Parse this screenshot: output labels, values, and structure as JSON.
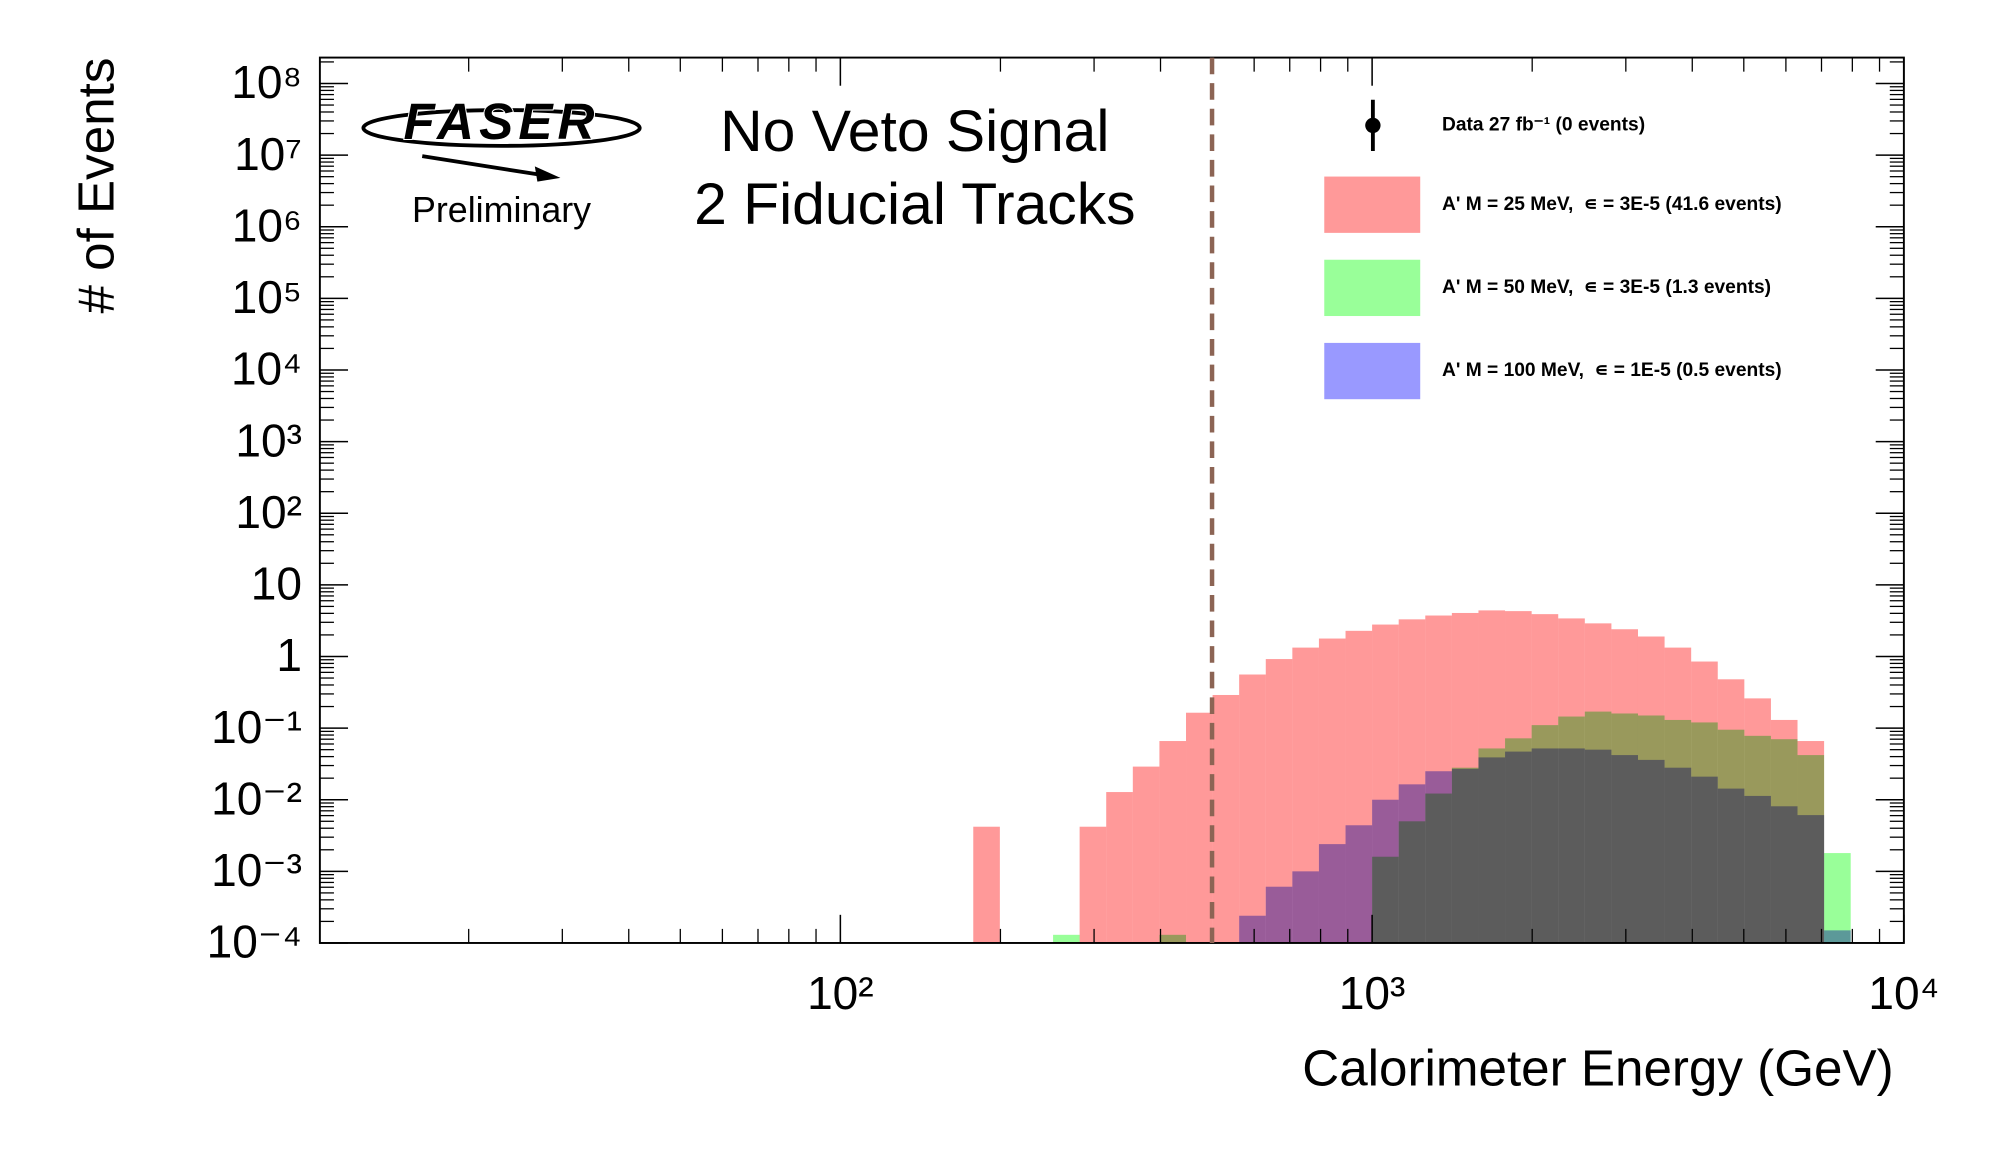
{
  "chart_data": {
    "type": "histogram",
    "annotations": [
      "No Veto Signal",
      "2 Fiducial Tracks"
    ],
    "logo": {
      "text": "FASER",
      "subtitle": "Preliminary"
    },
    "xlabel": "Calorimeter Energy (GeV)",
    "ylabel": "# of Events",
    "log_x": true,
    "log_y": true,
    "xlim": [
      10.5,
      10000
    ],
    "ylim": [
      0.0001,
      230000000
    ],
    "xticks": [
      {
        "value": 100,
        "label": "10²"
      },
      {
        "value": 1000,
        "label": "10³"
      },
      {
        "value": 10000,
        "label": "10⁴"
      }
    ],
    "yticks": [
      {
        "value": 0.0001,
        "label": "10⁻⁴"
      },
      {
        "value": 0.001,
        "label": "10⁻³"
      },
      {
        "value": 0.01,
        "label": "10⁻²"
      },
      {
        "value": 0.1,
        "label": "10⁻¹"
      },
      1,
      10,
      {
        "value": 100,
        "label": "10²"
      },
      {
        "value": 1000,
        "label": "10³"
      },
      {
        "value": 10000,
        "label": "10⁴"
      },
      {
        "value": 100000,
        "label": "10⁵"
      },
      {
        "value": 1000000,
        "label": "10⁶"
      },
      {
        "value": 10000000,
        "label": "10⁷"
      },
      {
        "value": 100000000,
        "label": "10⁸"
      }
    ],
    "bins": [
      177.8,
      199.5,
      223.9,
      251.2,
      281.8,
      316.2,
      354.8,
      398.1,
      446.7,
      501.2,
      562.3,
      631.0,
      707.9,
      794.3,
      891.3,
      1000,
      1122,
      1258.9,
      1412.5,
      1584.9,
      1778.3,
      1995.3,
      2238.7,
      2511.9,
      2818.4,
      3162.3,
      3548.1,
      3981.1,
      4466.8,
      5011.9,
      5623.4,
      6309.6,
      7079.5,
      7943.3
    ],
    "series": [
      {
        "name": "A' M = 25 MeV,  ∊ = 3E-5 (41.6 events)",
        "color": "#ff9999",
        "values": [
          0.0042,
          0,
          0,
          0,
          0.0042,
          0.0128,
          0.029,
          0.066,
          0.164,
          0.29,
          0.56,
          0.92,
          1.33,
          1.78,
          2.28,
          2.79,
          3.3,
          3.73,
          4.05,
          4.4,
          4.3,
          3.9,
          3.4,
          2.9,
          2.4,
          1.9,
          1.33,
          0.85,
          0.48,
          0.26,
          0.13,
          0.066,
          0
        ]
      },
      {
        "name": "A' M = 50 MeV,  ∊ = 3E-5 (1.3 events)",
        "color": "#99ff99",
        "values": [
          0,
          0,
          0,
          0.00013,
          0,
          0,
          0,
          0.00013,
          0,
          0,
          0,
          0,
          0,
          0,
          0,
          0.0016,
          0.005,
          0.0122,
          0.028,
          0.052,
          0.072,
          0.11,
          0.145,
          0.17,
          0.16,
          0.15,
          0.13,
          0.12,
          0.095,
          0.078,
          0.07,
          0.042,
          0.0018
        ]
      },
      {
        "name": "A' M = 100 MeV,  ∊ = 1E-5 (0.5 events)",
        "color": "#9999ff",
        "values": [
          0,
          0,
          0,
          0,
          0,
          0,
          0,
          0,
          0,
          0,
          0.00024,
          0.00061,
          0.001,
          0.0024,
          0.0044,
          0.01,
          0.0164,
          0.025,
          0.027,
          0.039,
          0.047,
          0.052,
          0.052,
          0.05,
          0.042,
          0.036,
          0.028,
          0.021,
          0.0143,
          0.0113,
          0.0081,
          0.0061,
          0.00015
        ]
      }
    ],
    "data_entry": {
      "name": "Data 27 fb⁻¹ (0 events)",
      "color": "#000000"
    },
    "cut_line": {
      "x": 500,
      "color": "#8c6454"
    },
    "legend": "upper right"
  }
}
